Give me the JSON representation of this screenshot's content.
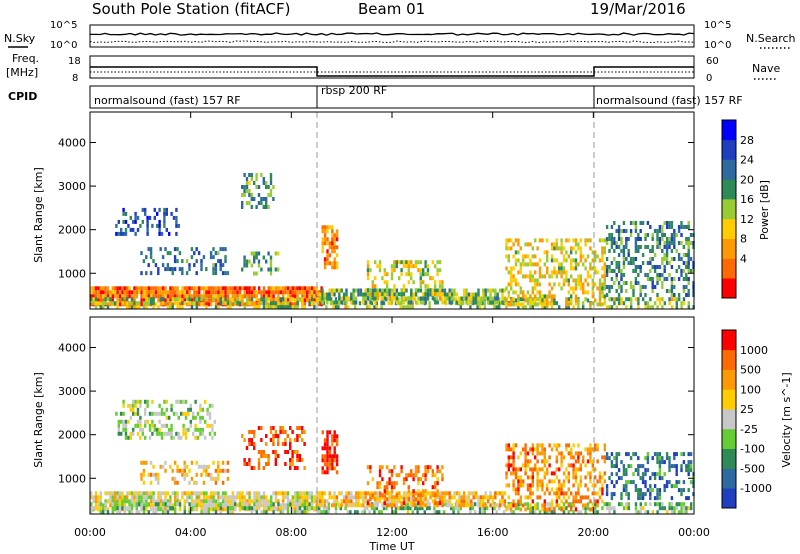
{
  "header": {
    "station": "South Pole Station (fitACF)",
    "beam": "Beam 01",
    "date": "19/Mar/2016"
  },
  "top_panels": {
    "nsky_label": "N.Sky",
    "nsearch_label": "N.Search",
    "noise_tick_high": "10^5",
    "noise_tick_low": "10^0",
    "freq_label_line1": "Freq.",
    "freq_label_line2": "[MHz]",
    "freq_ticks": [
      "18",
      "8"
    ],
    "nave_label": "Nave",
    "nave_ticks": [
      "60",
      "0"
    ],
    "cpid_label": "CPID",
    "cpid_segments": [
      {
        "label": "normalsound (fast) 157 RF",
        "start_h": 0,
        "end_h": 9
      },
      {
        "label": "rbsp 200 RF",
        "start_h": 9,
        "end_h": 20
      },
      {
        "label": "normalsound (fast) 157 RF",
        "start_h": 20,
        "end_h": 24
      }
    ]
  },
  "chart_data": [
    {
      "type": "heatmap",
      "name": "power-panel",
      "ylabel": "Slant Range [km]",
      "yticks": [
        1000,
        2000,
        3000,
        4000
      ],
      "ylim": [
        180,
        4700
      ],
      "xlim": [
        0,
        24
      ],
      "colorbar_label": "Power [dB]",
      "colorbar_ticks": [
        "28",
        "24",
        "20",
        "16",
        "12",
        "8",
        "4"
      ],
      "colorbar_colors": [
        "#ff0000",
        "#ff6a00",
        "#ff9900",
        "#ffcc00",
        "#99cc33",
        "#2e8b57",
        "#2d6a9f",
        "#1f3fbf",
        "#0000ff"
      ],
      "regions": [
        {
          "h0": 0.0,
          "h1": 9.2,
          "r0": 300,
          "r1": 700,
          "level": 0.2,
          "density": 0.9
        },
        {
          "h0": 0.0,
          "h1": 24.0,
          "r0": 200,
          "r1": 450,
          "level": 0.5,
          "density": 0.5
        },
        {
          "h0": 1.0,
          "h1": 3.5,
          "r0": 1900,
          "r1": 2500,
          "level": 0.75,
          "density": 0.35
        },
        {
          "h0": 2.0,
          "h1": 5.5,
          "r0": 1000,
          "r1": 1600,
          "level": 0.7,
          "density": 0.3
        },
        {
          "h0": 6.0,
          "h1": 7.5,
          "r0": 1000,
          "r1": 1500,
          "level": 0.6,
          "density": 0.4
        },
        {
          "h0": 6.0,
          "h1": 7.3,
          "r0": 2500,
          "r1": 3300,
          "level": 0.6,
          "density": 0.3
        },
        {
          "h0": 9.2,
          "h1": 9.8,
          "r0": 1100,
          "r1": 2100,
          "level": 0.25,
          "density": 0.7
        },
        {
          "h0": 9.0,
          "h1": 16.5,
          "r0": 350,
          "r1": 650,
          "level": 0.55,
          "density": 0.7
        },
        {
          "h0": 11.0,
          "h1": 14.0,
          "r0": 400,
          "r1": 1300,
          "level": 0.45,
          "density": 0.35
        },
        {
          "h0": 16.5,
          "h1": 20.5,
          "r0": 300,
          "r1": 1800,
          "level": 0.4,
          "density": 0.45
        },
        {
          "h0": 20.5,
          "h1": 24.0,
          "r0": 500,
          "r1": 2200,
          "level": 0.65,
          "density": 0.4
        }
      ]
    },
    {
      "type": "heatmap",
      "name": "velocity-panel",
      "ylabel": "Slant Range [km]",
      "yticks": [
        1000,
        2000,
        3000,
        4000
      ],
      "ylim": [
        180,
        4700
      ],
      "xlim": [
        0,
        24
      ],
      "xticks": [
        "00:00",
        "04:00",
        "08:00",
        "12:00",
        "16:00",
        "20:00",
        "00:00"
      ],
      "xlabel": "Time UT",
      "colorbar_label": "Velocity [m s^-1]",
      "colorbar_ticks": [
        "1000",
        "500",
        "100",
        "25",
        "-25",
        "-100",
        "-500",
        "-1000"
      ],
      "colorbar_colors": [
        "#1f3fbf",
        "#2d6a9f",
        "#2e8b57",
        "#66cc33",
        "#c8c8c8",
        "#ffcc00",
        "#ff9900",
        "#ff6a00",
        "#ff0000"
      ],
      "regions": [
        {
          "h0": 0.0,
          "h1": 9.2,
          "r0": 300,
          "r1": 700,
          "level": 0.55,
          "density": 0.8
        },
        {
          "h0": 0.0,
          "h1": 24.0,
          "r0": 200,
          "r1": 450,
          "level": 0.4,
          "density": 0.5
        },
        {
          "h0": 1.0,
          "h1": 5.0,
          "r0": 1900,
          "r1": 2800,
          "level": 0.45,
          "density": 0.4
        },
        {
          "h0": 2.0,
          "h1": 5.5,
          "r0": 900,
          "r1": 1400,
          "level": 0.65,
          "density": 0.35
        },
        {
          "h0": 6.0,
          "h1": 8.5,
          "r0": 1200,
          "r1": 2200,
          "level": 0.85,
          "density": 0.35
        },
        {
          "h0": 9.2,
          "h1": 9.8,
          "r0": 1100,
          "r1": 2100,
          "level": 0.9,
          "density": 0.7
        },
        {
          "h0": 9.0,
          "h1": 16.5,
          "r0": 350,
          "r1": 700,
          "level": 0.65,
          "density": 0.75
        },
        {
          "h0": 11.0,
          "h1": 14.0,
          "r0": 400,
          "r1": 1300,
          "level": 0.8,
          "density": 0.35
        },
        {
          "h0": 16.5,
          "h1": 20.5,
          "r0": 300,
          "r1": 1800,
          "level": 0.75,
          "density": 0.45
        },
        {
          "h0": 20.5,
          "h1": 24.0,
          "r0": 500,
          "r1": 1600,
          "level": 0.2,
          "density": 0.4
        }
      ]
    }
  ]
}
